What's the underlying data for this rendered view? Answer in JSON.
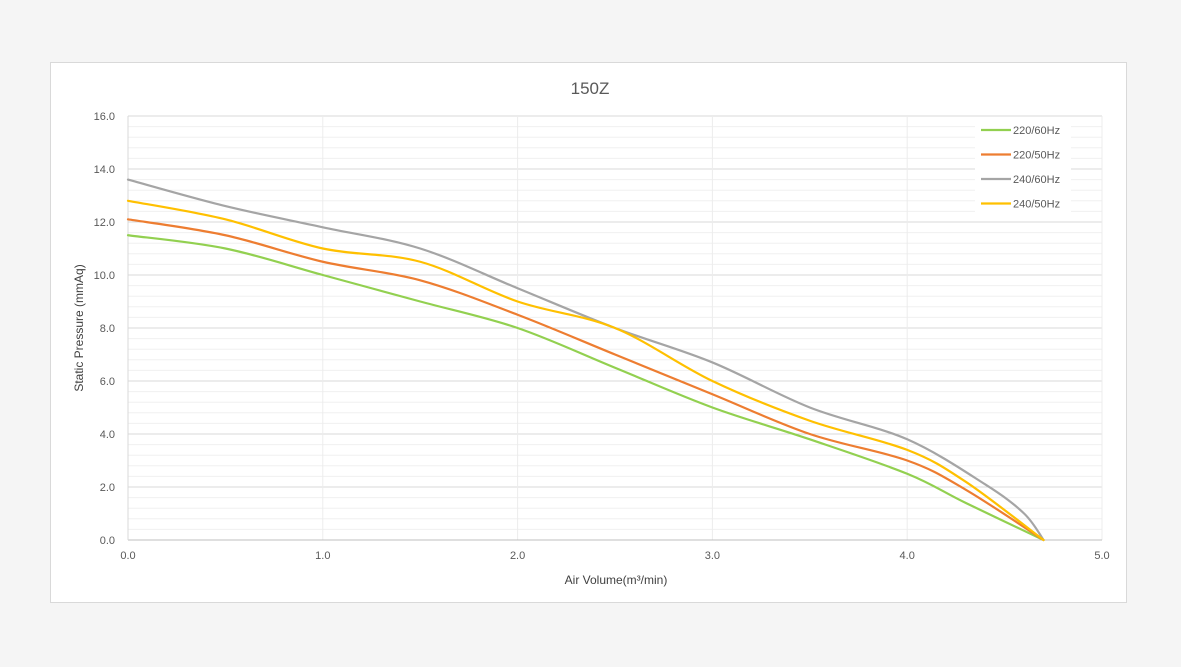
{
  "chart_data": {
    "type": "line",
    "title": "150Z",
    "xlabel": "Air Volume(m³/min)",
    "ylabel": "Static Pressure (mmAq)",
    "xlim": [
      0,
      5
    ],
    "ylim": [
      0,
      16
    ],
    "x_ticks": [
      "0.0",
      "1.0",
      "2.0",
      "3.0",
      "4.0",
      "5.0"
    ],
    "y_ticks": [
      "0.0",
      "2.0",
      "4.0",
      "6.0",
      "8.0",
      "10.0",
      "12.0",
      "14.0",
      "16.0"
    ],
    "grid": true,
    "legend_position": "top-right",
    "series": [
      {
        "name": "220/60Hz",
        "color": "#92d050",
        "points": [
          [
            0,
            11.5
          ],
          [
            0.5,
            11.0
          ],
          [
            1.0,
            10.0
          ],
          [
            1.5,
            9.0
          ],
          [
            2.0,
            8.0
          ],
          [
            2.5,
            6.5
          ],
          [
            3.0,
            5.0
          ],
          [
            3.5,
            3.8
          ],
          [
            4.0,
            2.5
          ],
          [
            4.3,
            1.4
          ],
          [
            4.7,
            0.0
          ]
        ]
      },
      {
        "name": "220/50Hz",
        "color": "#ed7d31",
        "points": [
          [
            0,
            12.1
          ],
          [
            0.5,
            11.5
          ],
          [
            1.0,
            10.5
          ],
          [
            1.5,
            9.8
          ],
          [
            2.0,
            8.5
          ],
          [
            2.5,
            7.0
          ],
          [
            3.0,
            5.5
          ],
          [
            3.5,
            4.0
          ],
          [
            4.0,
            3.0
          ],
          [
            4.3,
            1.9
          ],
          [
            4.7,
            0.0
          ]
        ]
      },
      {
        "name": "240/60Hz",
        "color": "#a5a5a5",
        "points": [
          [
            0,
            13.6
          ],
          [
            0.5,
            12.6
          ],
          [
            1.0,
            11.8
          ],
          [
            1.5,
            11.0
          ],
          [
            2.0,
            9.5
          ],
          [
            2.5,
            8.0
          ],
          [
            3.0,
            6.7
          ],
          [
            3.5,
            5.0
          ],
          [
            4.0,
            3.8
          ],
          [
            4.4,
            2.1
          ],
          [
            4.6,
            1.0
          ],
          [
            4.7,
            0.0
          ]
        ]
      },
      {
        "name": "240/50Hz",
        "color": "#ffc000",
        "points": [
          [
            0,
            12.8
          ],
          [
            0.5,
            12.1
          ],
          [
            1.0,
            11.0
          ],
          [
            1.5,
            10.5
          ],
          [
            2.0,
            9.0
          ],
          [
            2.5,
            8.0
          ],
          [
            3.0,
            6.0
          ],
          [
            3.5,
            4.5
          ],
          [
            4.0,
            3.4
          ],
          [
            4.3,
            2.2
          ],
          [
            4.7,
            0.0
          ]
        ]
      }
    ]
  }
}
